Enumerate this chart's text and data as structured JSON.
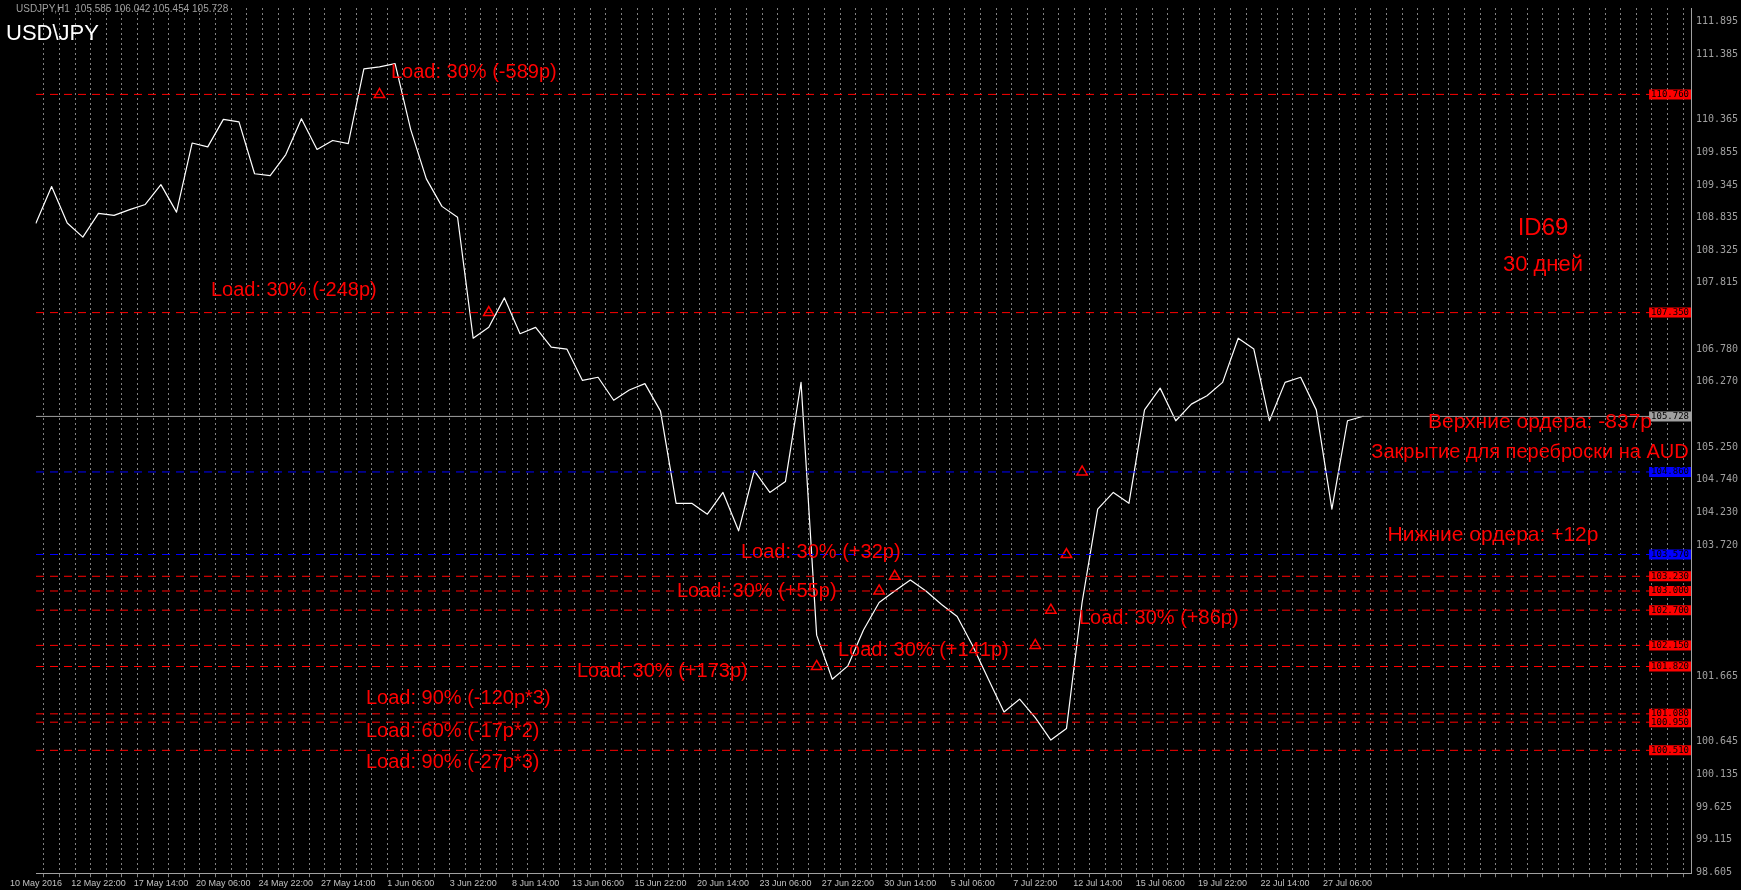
{
  "chart_data": {
    "type": "line",
    "title": "USD\\JPY",
    "subtitle": "USDJPY,H1  105.585 106.042 105.454 105.728",
    "categories": [
      "10 May 2016",
      null,
      null,
      null,
      "12 May 22:00",
      null,
      null,
      null,
      "17 May 14:00",
      null,
      null,
      null,
      "20 May 06:00",
      null,
      null,
      null,
      "24 May 22:00",
      null,
      null,
      null,
      "27 May 14:00",
      null,
      null,
      null,
      "1 Jun 06:00",
      null,
      null,
      null,
      "3 Jun 22:00",
      null,
      null,
      null,
      "8 Jun 14:00",
      null,
      null,
      null,
      "13 Jun 06:00",
      null,
      null,
      null,
      "15 Jun 22:00",
      null,
      null,
      null,
      "20 Jun 14:00",
      null,
      null,
      null,
      "23 Jun 06:00",
      null,
      null,
      null,
      "27 Jun 22:00",
      null,
      null,
      null,
      "30 Jun 14:00",
      null,
      null,
      null,
      "5 Jul 06:00",
      null,
      null,
      null,
      "7 Jul 22:00",
      null,
      null,
      null,
      "12 Jul 14:00",
      null,
      null,
      null,
      "15 Jul 06:00",
      null,
      null,
      null,
      "19 Jul 22:00",
      null,
      null,
      null,
      "22 Jul 14:00",
      null,
      null,
      null,
      "27 Jul 06:00",
      null,
      null,
      null,
      null,
      null,
      null,
      null,
      null,
      null,
      null,
      null,
      null,
      null,
      null,
      null,
      null,
      null,
      null,
      null,
      null,
      null,
      null
    ],
    "series": [
      {
        "color": "#ffffff",
        "values": [
          108.75,
          109.32,
          108.75,
          108.53,
          108.9,
          108.87,
          108.96,
          109.04,
          109.35,
          108.92,
          110.0,
          109.94,
          110.37,
          110.33,
          109.52,
          109.49,
          109.82,
          110.38,
          109.9,
          110.04,
          109.99,
          111.16,
          111.19,
          111.24,
          110.21,
          109.44,
          109.01,
          108.84,
          106.95,
          107.12,
          107.58,
          107.02,
          107.12,
          106.81,
          106.78,
          106.29,
          106.34,
          105.98,
          106.14,
          106.24,
          105.81,
          104.37,
          104.37,
          104.2,
          104.54,
          103.94,
          104.88,
          104.54,
          104.71,
          106.26,
          102.31,
          101.62,
          101.83,
          102.39,
          102.82,
          103.0,
          103.17,
          103.0,
          102.79,
          102.6,
          102.14,
          101.62,
          101.11,
          101.31,
          101.02,
          100.67,
          100.85,
          102.82,
          104.28,
          104.54,
          104.37,
          105.83,
          106.17,
          105.66,
          105.92,
          106.05,
          106.26,
          106.95,
          106.78,
          105.66,
          106.26,
          106.34,
          105.83,
          104.28,
          105.66,
          105.73,
          null,
          null,
          null,
          null,
          null,
          null,
          null,
          null,
          null,
          null,
          null,
          null,
          null,
          null,
          null,
          null,
          null,
          null,
          null,
          null,
          null
        ]
      },
      {
        "type": "scatter",
        "color": "#ff0000",
        "marker": "triangle",
        "values": [
          null,
          null,
          null,
          null,
          null,
          null,
          null,
          null,
          null,
          null,
          null,
          null,
          null,
          null,
          null,
          null,
          null,
          null,
          null,
          null,
          null,
          null,
          110.76,
          null,
          null,
          null,
          null,
          null,
          null,
          107.35,
          null,
          null,
          null,
          null,
          null,
          null,
          null,
          null,
          null,
          null,
          null,
          null,
          null,
          null,
          null,
          null,
          null,
          null,
          null,
          null,
          101.82,
          null,
          null,
          null,
          103.0,
          103.23,
          null,
          null,
          null,
          null,
          null,
          null,
          null,
          null,
          102.15,
          102.7,
          103.57,
          104.86,
          null,
          null,
          null,
          null,
          null,
          null,
          null,
          null,
          null,
          null,
          null,
          null,
          null,
          null,
          null,
          null,
          null,
          null,
          null,
          null,
          null,
          null,
          null,
          null,
          null,
          null,
          null,
          null,
          null,
          null,
          null,
          null,
          null,
          null,
          null,
          null,
          null,
          null,
          null
        ]
      }
    ],
    "marker": "none",
    "grid": "x",
    "ylim": [
      98.59,
      112.11
    ],
    "yticks": [
      {
        "value": 98.605,
        "label": "98.605"
      },
      {
        "value": 99.115,
        "label": "99.115"
      },
      {
        "value": 99.625,
        "label": "99.625"
      },
      {
        "value": 100.135,
        "label": "100.135"
      },
      {
        "value": 100.645,
        "label": "100.645"
      },
      {
        "value": 101.665,
        "label": "101.665"
      },
      {
        "value": 103.72,
        "label": "103.720"
      },
      {
        "value": 104.23,
        "label": "104.230"
      },
      {
        "value": 104.74,
        "label": "104.740"
      },
      {
        "value": 105.25,
        "label": "105.250"
      },
      {
        "value": 106.27,
        "label": "106.270"
      },
      {
        "value": 106.78,
        "label": "106.780"
      },
      {
        "value": 107.815,
        "label": "107.815"
      },
      {
        "value": 108.325,
        "label": "108.325"
      },
      {
        "value": 108.835,
        "label": "108.835"
      },
      {
        "value": 109.345,
        "label": "109.345"
      },
      {
        "value": 109.855,
        "label": "109.855"
      },
      {
        "value": 110.365,
        "label": "110.365"
      },
      {
        "value": 111.385,
        "label": "111.385"
      },
      {
        "value": 111.895,
        "label": "111.895"
      }
    ],
    "ref_lines": [
      {
        "axis": "y",
        "value": 110.76,
        "label": "110.760",
        "color": "#ff0000",
        "line_style": "dashed"
      },
      {
        "axis": "y",
        "value": 107.35,
        "label": "107.350",
        "color": "#ff0000",
        "line_style": "dashed"
      },
      {
        "axis": "y",
        "value": 105.728,
        "label": "105.728",
        "color": "#a0a0a0",
        "line_style": "solid"
      },
      {
        "axis": "y",
        "value": 104.86,
        "label": "104.860",
        "color": "#0000ff",
        "line_style": "dashed"
      },
      {
        "axis": "y",
        "value": 103.57,
        "label": "103.570",
        "color": "#0000ff",
        "line_style": "dashed"
      },
      {
        "axis": "y",
        "value": 103.23,
        "label": "103.230",
        "color": "#ff0000",
        "line_style": "dashed"
      },
      {
        "axis": "y",
        "value": 103.0,
        "label": "103.000",
        "color": "#ff0000",
        "line_style": "dashed"
      },
      {
        "axis": "y",
        "value": 102.7,
        "label": "102.700",
        "color": "#ff0000",
        "line_style": "dashed"
      },
      {
        "axis": "y",
        "value": 102.15,
        "label": "102.150",
        "color": "#ff0000",
        "line_style": "dashed"
      },
      {
        "axis": "y",
        "value": 101.82,
        "label": "101.820",
        "color": "#ff0000",
        "line_style": "dashed"
      },
      {
        "axis": "y",
        "value": 101.08,
        "label": "101.080",
        "color": "#ff0000",
        "line_style": "dashed"
      },
      {
        "axis": "y",
        "value": 100.95,
        "label": "100.950",
        "color": "#ff0000",
        "line_style": "dashed"
      },
      {
        "axis": "y",
        "value": 100.51,
        "label": "100.510",
        "color": "#ff0000",
        "line_style": "dashed"
      }
    ],
    "annotations": [
      "Load: 30% (-589p)",
      "Load: 30% (-248p)",
      "Load: 30% (+32p)",
      "Load: 30% (+55p)",
      "Load: 30% (+86p)",
      "Load: 30% (+141p)",
      "Load: 30% (+173p)",
      "Load: 90% (-120p*3)",
      "Load: 60% (-17p*2)",
      "Load: 90% (-27p*3)",
      "ID69",
      "30 дней",
      "Верхние ордера: -837p",
      "Закрытие для переброски на AUD",
      "Нижние ордера: +12p"
    ]
  }
}
